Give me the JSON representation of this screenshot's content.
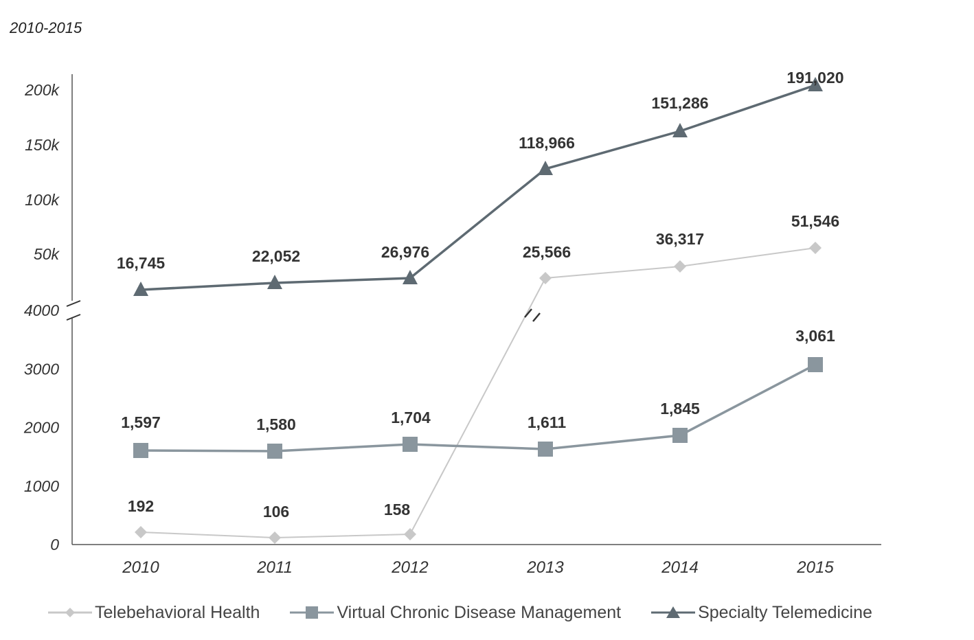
{
  "subtitle": "2010-2015",
  "chart_data": {
    "type": "line",
    "categories": [
      "2010",
      "2011",
      "2012",
      "2013",
      "2014",
      "2015"
    ],
    "y_axis": {
      "broken": true,
      "lower_ticks": [
        "0",
        "1000",
        "2000",
        "3000",
        "4000"
      ],
      "upper_ticks": [
        "50k",
        "100k",
        "150k",
        "200k"
      ],
      "lower_range": [
        0,
        4000
      ],
      "upper_range": [
        0,
        200000
      ]
    },
    "series": [
      {
        "name": "Telebehavioral Health",
        "values": [
          192,
          106,
          158,
          25566,
          36317,
          51546
        ],
        "labels": [
          "192",
          "106",
          "158",
          "25,566",
          "36,317",
          "51,546"
        ],
        "marker": "diamond",
        "color": "#c8c8c8"
      },
      {
        "name": "Virtual Chronic Disease Management",
        "values": [
          1597,
          1580,
          1704,
          1611,
          1845,
          3061
        ],
        "labels": [
          "1,597",
          "1,580",
          "1,704",
          "1,611",
          "1,845",
          "3,061"
        ],
        "marker": "square",
        "color": "#8a969e"
      },
      {
        "name": "Specialty Telemedicine",
        "values": [
          16745,
          22052,
          26976,
          118966,
          151286,
          191020
        ],
        "labels": [
          "16,745",
          "22,052",
          "26,976",
          "118,966",
          "151,286",
          "191,020"
        ],
        "marker": "triangle",
        "color": "#5e6a72"
      }
    ],
    "legend_position": "bottom",
    "grid": false
  }
}
